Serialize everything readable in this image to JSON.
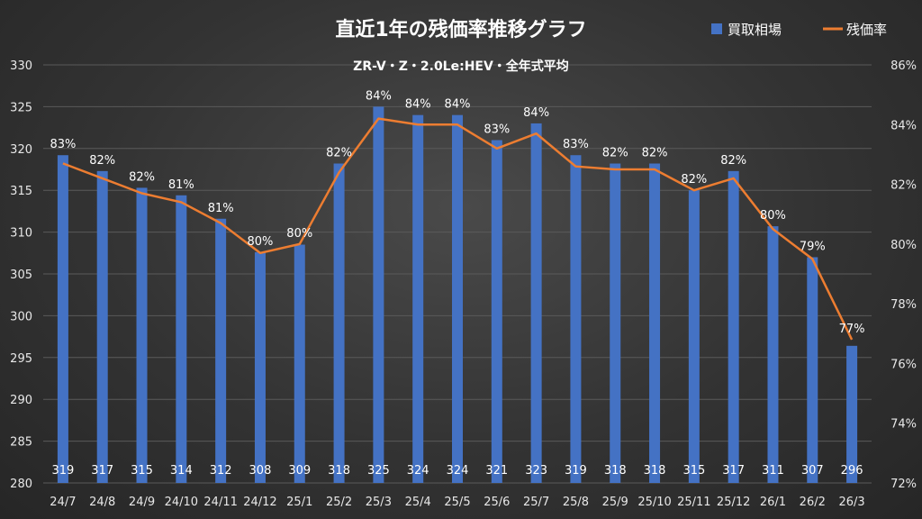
{
  "chart_data": {
    "type": "bar+line",
    "title": "直近1年の残価率推移グラフ",
    "subtitle": "ZR-V・Z・2.0Le:HEV・全年式平均",
    "categories": [
      "24/7",
      "24/8",
      "24/9",
      "24/10",
      "24/11",
      "24/12",
      "25/1",
      "25/2",
      "25/3",
      "25/4",
      "25/5",
      "25/6",
      "25/7",
      "25/8",
      "25/9",
      "25/10",
      "25/11",
      "25/12",
      "26/1",
      "26/2",
      "26/3"
    ],
    "series": [
      {
        "name": "買取相場",
        "type": "bar",
        "axis": "left",
        "color": "#4472c4",
        "values": [
          319.2,
          317.3,
          315.3,
          314.4,
          311.6,
          307.6,
          308.5,
          318.2,
          325.0,
          324.0,
          324.0,
          321.0,
          323.0,
          319.2,
          318.2,
          318.2,
          315.0,
          317.3,
          310.7,
          307.0,
          296.4
        ],
        "labels": [
          "319",
          "317",
          "315",
          "314",
          "312",
          "308",
          "309",
          "318",
          "325",
          "324",
          "324",
          "321",
          "323",
          "319",
          "318",
          "318",
          "315",
          "317",
          "311",
          "307",
          "296"
        ]
      },
      {
        "name": "残価率",
        "type": "line",
        "axis": "right",
        "color": "#ed7d31",
        "values": [
          82.7,
          82.2,
          81.7,
          81.4,
          80.7,
          79.7,
          80.0,
          82.4,
          84.2,
          84.0,
          84.0,
          83.2,
          83.7,
          82.6,
          82.5,
          82.5,
          81.8,
          82.2,
          80.5,
          79.5,
          76.8
        ],
        "labels": [
          "83%",
          "82%",
          "82%",
          "81%",
          "81%",
          "80%",
          "80%",
          "82%",
          "84%",
          "84%",
          "84%",
          "83%",
          "84%",
          "83%",
          "82%",
          "82%",
          "82%",
          "82%",
          "80%",
          "79%",
          "77%"
        ]
      }
    ],
    "y_left": {
      "min": 280,
      "max": 330,
      "step": 5,
      "ticks": [
        "280",
        "285",
        "290",
        "295",
        "300",
        "305",
        "310",
        "315",
        "320",
        "325",
        "330"
      ]
    },
    "y_right": {
      "min": 72,
      "max": 86,
      "step": 2,
      "ticks": [
        "72%",
        "74%",
        "76%",
        "78%",
        "80%",
        "82%",
        "84%",
        "86%"
      ]
    },
    "legend": {
      "position": "top-right",
      "items": [
        "買取相場",
        "残価率"
      ]
    },
    "grid": true
  }
}
